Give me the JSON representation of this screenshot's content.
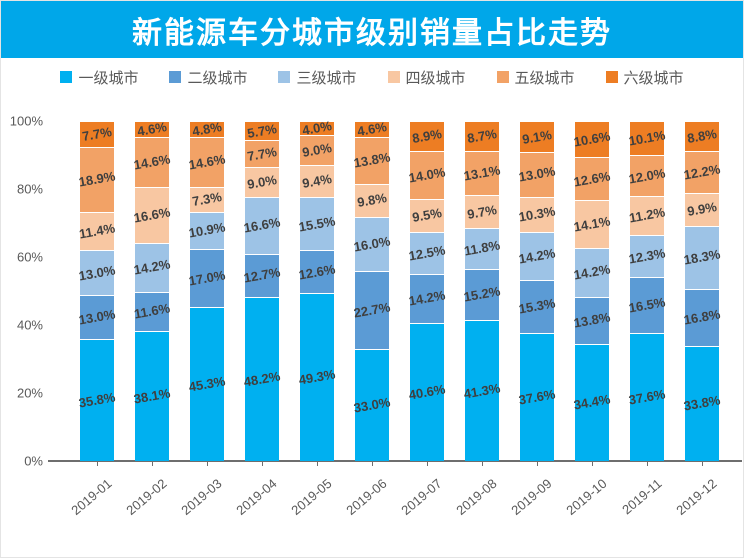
{
  "header": {
    "title": "新能源车分城市级别销量占比走势"
  },
  "theme": {
    "banner_color": "#00a7e9",
    "axis_line_color": "#6e6e6e",
    "axis_text_color": "#595959",
    "data_label_color": "#3f3f3f"
  },
  "axis": {
    "ytick_labels": [
      "0%",
      "20%",
      "40%",
      "60%",
      "80%",
      "100%"
    ]
  },
  "chart_data": {
    "type": "bar",
    "stacked": true,
    "normalized_to_100": true,
    "unit": "%",
    "title": "新能源车分城市级别销量占比走势",
    "xlabel": "",
    "ylabel": "",
    "ylim": [
      0,
      100
    ],
    "yticks": [
      0,
      20,
      40,
      60,
      80,
      100
    ],
    "grid": false,
    "legend_position": "top",
    "categories": [
      "2019-01",
      "2019-02",
      "2019-03",
      "2019-04",
      "2019-05",
      "2019-06",
      "2019-07",
      "2019-08",
      "2019-09",
      "2019-10",
      "2019-11",
      "2019-12"
    ],
    "series": [
      {
        "name": "一级城市",
        "color": "#00b0f0",
        "values": [
          35.8,
          38.1,
          45.3,
          48.2,
          49.3,
          33.0,
          40.6,
          41.3,
          37.6,
          34.4,
          37.6,
          33.8
        ]
      },
      {
        "name": "二级城市",
        "color": "#5b9bd5",
        "values": [
          13.0,
          11.6,
          17.0,
          12.7,
          12.6,
          22.7,
          14.2,
          15.2,
          15.3,
          13.8,
          16.5,
          16.8
        ]
      },
      {
        "name": "三级城市",
        "color": "#9dc3e6",
        "values": [
          13.0,
          14.2,
          10.9,
          16.6,
          15.5,
          16.0,
          12.5,
          11.8,
          14.2,
          14.2,
          12.3,
          18.3
        ]
      },
      {
        "name": "四级城市",
        "color": "#f8c7a2",
        "values": [
          11.4,
          16.6,
          7.3,
          9.0,
          9.4,
          9.8,
          9.5,
          9.7,
          10.3,
          14.1,
          11.2,
          9.9
        ]
      },
      {
        "name": "五级城市",
        "color": "#f2a266",
        "values": [
          18.9,
          14.6,
          14.6,
          7.7,
          9.0,
          13.8,
          14.0,
          13.1,
          13.0,
          12.6,
          12.0,
          12.2
        ]
      },
      {
        "name": "六级城市",
        "color": "#ed7d23",
        "values": [
          7.7,
          4.6,
          4.8,
          5.7,
          4.0,
          4.6,
          8.9,
          8.7,
          9.1,
          10.6,
          10.1,
          8.8
        ]
      }
    ]
  }
}
